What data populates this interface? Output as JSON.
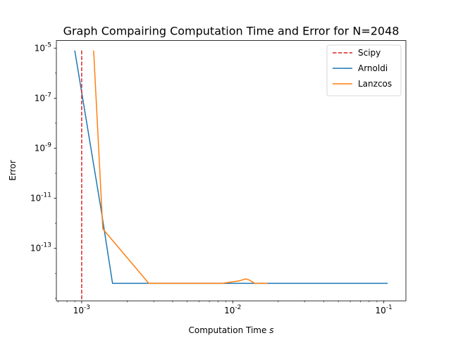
{
  "chart_data": {
    "type": "line",
    "title": "Graph Compairing Computation Time and Error for N=2048",
    "xlabel": "Computation Time s",
    "ylabel": "Error",
    "xscale": "log",
    "yscale": "log",
    "xlim": [
      0.00068,
      0.14
    ],
    "ylim": [
      8e-16,
      2e-05
    ],
    "grid": false,
    "legend_position": "top-right",
    "x_ticks": [
      {
        "value": 0.001,
        "label": "10^-3"
      },
      {
        "value": 0.01,
        "label": "10^-2"
      },
      {
        "value": 0.1,
        "label": "10^-1"
      }
    ],
    "y_ticks": [
      {
        "value": 1e-05,
        "label": "10^-5"
      },
      {
        "value": 1e-07,
        "label": "10^-7"
      },
      {
        "value": 1e-09,
        "label": "10^-9"
      },
      {
        "value": 1e-11,
        "label": "10^-11"
      },
      {
        "value": 1e-13,
        "label": "10^-13"
      }
    ],
    "vlines": [
      {
        "name": "Scipy",
        "x": 0.001,
        "color": "#d62728",
        "style": "dashed"
      }
    ],
    "series": [
      {
        "name": "Arnoldi",
        "color": "#1f77b4",
        "x": [
          0.0009,
          0.00135,
          0.0016,
          0.0025,
          0.005,
          0.01,
          0.03,
          0.106
        ],
        "y": [
          8e-06,
          3e-12,
          4e-15,
          4e-15,
          4e-15,
          4e-15,
          4e-15,
          4e-15
        ]
      },
      {
        "name": "Lanzcos",
        "color": "#ff7f0e",
        "x": [
          0.0012,
          0.00138,
          0.00278,
          0.0035,
          0.0085,
          0.011,
          0.0122,
          0.0128,
          0.014,
          0.017
        ],
        "y": [
          8e-06,
          6e-13,
          4e-15,
          4e-15,
          4e-15,
          5e-15,
          6e-15,
          5.5e-15,
          4e-15,
          4e-15
        ]
      }
    ]
  }
}
